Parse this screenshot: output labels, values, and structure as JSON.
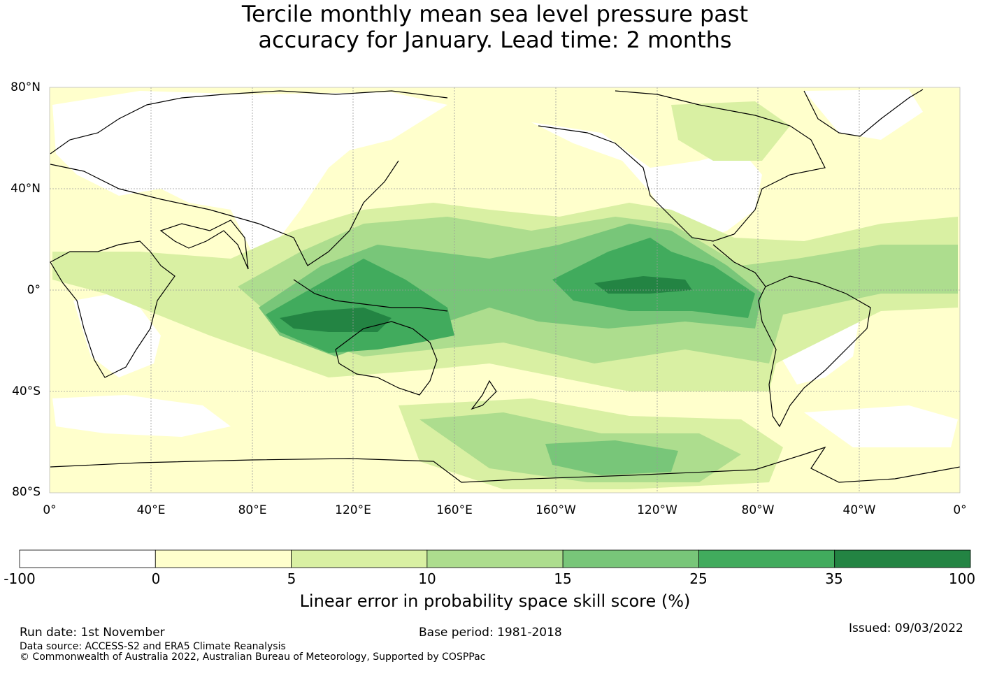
{
  "title": {
    "line1": "Tercile monthly mean sea level pressure past",
    "line2": "accuracy for January. Lead time: 2 months"
  },
  "map": {
    "lat_labels": [
      "80°N",
      "40°N",
      "0°",
      "40°S",
      "80°S"
    ],
    "lon_labels": [
      "0°",
      "40°E",
      "80°E",
      "120°E",
      "160°E",
      "160°W",
      "120°W",
      "80°W",
      "40°W",
      "0°"
    ],
    "colors": {
      "lt0": "#ffffff",
      "c0_5": "#ffffcc",
      "c5_10": "#d9f0a3",
      "c10_15": "#addd8e",
      "c15_25": "#78c679",
      "c25_35": "#41ab5d",
      "c35_100": "#238443",
      "coast": "#000000",
      "grid": "#9a9a9a"
    }
  },
  "colorbar": {
    "ticks": [
      "-100",
      "0",
      "5",
      "10",
      "15",
      "25",
      "35",
      "100"
    ],
    "colors": [
      "#ffffff",
      "#ffffcc",
      "#d9f0a3",
      "#addd8e",
      "#78c679",
      "#41ab5d",
      "#238443"
    ],
    "label": "Linear error in probability space skill score (%)"
  },
  "footer": {
    "run_date": "Run date: 1st November",
    "base_period": "Base period: 1981-2018",
    "issued": "Issued: 09/03/2022",
    "data_source": "Data source: ACCESS-S2 and ERA5 Climate Reanalysis",
    "copyright": "© Commonwealth of Australia 2022, Australian Bureau of Meteorology, Supported by COSPPac"
  }
}
